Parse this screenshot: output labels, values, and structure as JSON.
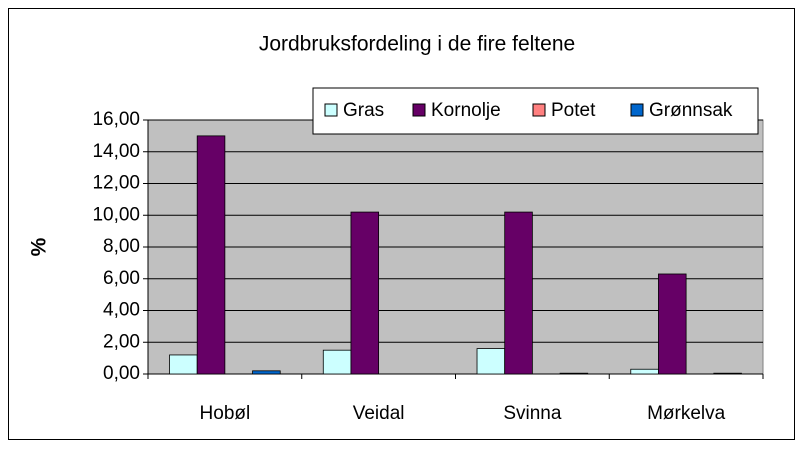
{
  "chart_data": {
    "type": "bar",
    "title": "Jordbruksfordeling i de fire feltene",
    "y_label": "%",
    "categories": [
      "Hobøl",
      "Veidal",
      "Svinna",
      "Mørkelva"
    ],
    "series": [
      {
        "name": "Gras",
        "color": "#ccffff",
        "values": [
          1.2,
          1.5,
          1.6,
          0.3
        ]
      },
      {
        "name": "Kornolje",
        "color": "#660066",
        "values": [
          15.0,
          10.2,
          10.2,
          6.3
        ]
      },
      {
        "name": "Potet",
        "color": "#ff8080",
        "values": [
          0,
          0,
          0,
          0
        ]
      },
      {
        "name": "Grønnsak",
        "color": "#0066cc",
        "values": [
          0.2,
          0,
          0.05,
          0.05
        ]
      }
    ],
    "ylim": [
      0,
      16
    ],
    "yticks": [
      {
        "value": 0,
        "label": "0,00"
      },
      {
        "value": 2,
        "label": "2,00"
      },
      {
        "value": 4,
        "label": "4,00"
      },
      {
        "value": 6,
        "label": "6,00"
      },
      {
        "value": 8,
        "label": "8,00"
      },
      {
        "value": 10,
        "label": "10,00"
      },
      {
        "value": 12,
        "label": "12,00"
      },
      {
        "value": 14,
        "label": "14,00"
      },
      {
        "value": 16,
        "label": "16,00"
      }
    ],
    "grid": true,
    "legend": "top-right"
  }
}
